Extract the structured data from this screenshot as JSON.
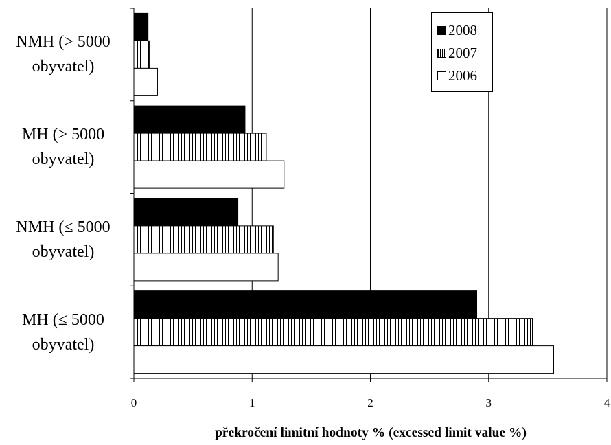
{
  "chart_data": {
    "type": "bar",
    "orientation": "horizontal",
    "categories": [
      [
        "NMH (> 5000",
        "obyvatel)"
      ],
      [
        "MH (> 5000",
        "obyvatel)"
      ],
      [
        "NMH (≤ 5000",
        "obyvatel)"
      ],
      [
        "MH (≤ 5000",
        "obyvatel)"
      ]
    ],
    "series": [
      {
        "name": "2008",
        "pattern": "solid",
        "values": [
          0.12,
          0.94,
          0.88,
          2.9
        ]
      },
      {
        "name": "2007",
        "pattern": "vertical-stripes",
        "values": [
          0.13,
          1.12,
          1.18,
          3.37
        ]
      },
      {
        "name": "2006",
        "pattern": "white",
        "values": [
          0.2,
          1.27,
          1.22,
          3.55
        ]
      }
    ],
    "xlabel": "překročení limitní hodnoty % (excessed limit value %)",
    "xlim": [
      0,
      4
    ],
    "xticks": [
      0,
      1,
      2,
      3,
      4
    ],
    "grid": "vertical",
    "legend_position": "top-right"
  }
}
